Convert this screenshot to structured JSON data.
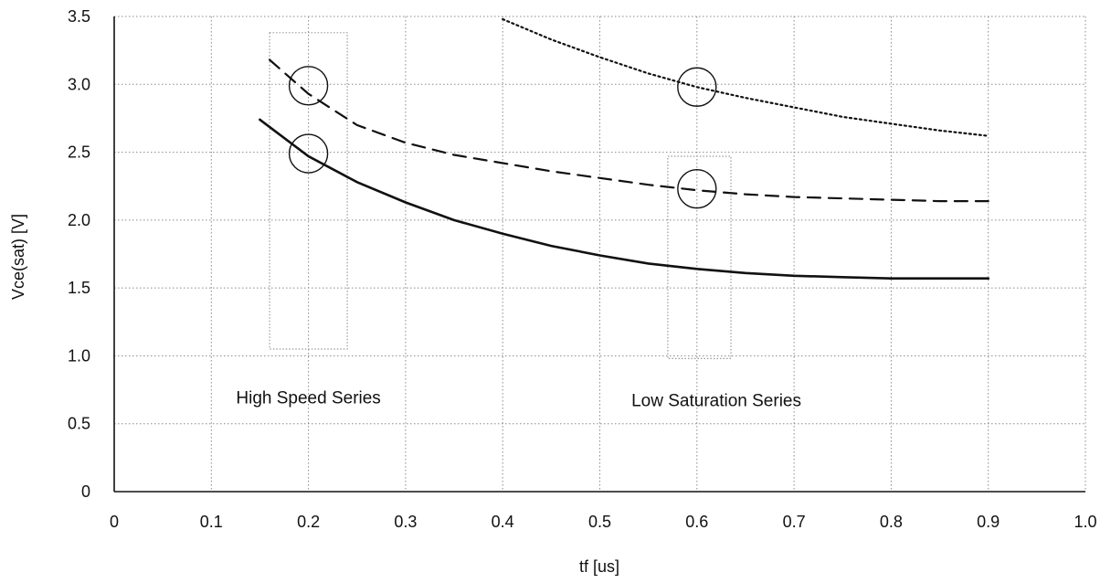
{
  "chart_data": {
    "type": "line",
    "title": "",
    "xlabel": "tf [us]",
    "ylabel": "Vce(sat) [V]",
    "xlim": [
      0,
      1.0
    ],
    "ylim": [
      0,
      3.5
    ],
    "grid": true,
    "legend": "none",
    "x_ticks": [
      {
        "value": 0,
        "label": "0"
      },
      {
        "value": 0.1,
        "label": "0.1"
      },
      {
        "value": 0.2,
        "label": "0.2"
      },
      {
        "value": 0.3,
        "label": "0.3"
      },
      {
        "value": 0.4,
        "label": "0.4"
      },
      {
        "value": 0.5,
        "label": "0.5"
      },
      {
        "value": 0.6,
        "label": "0.6"
      },
      {
        "value": 0.7,
        "label": "0.7"
      },
      {
        "value": 0.8,
        "label": "0.8"
      },
      {
        "value": 0.9,
        "label": "0.9"
      },
      {
        "value": 1.0,
        "label": "1.0"
      }
    ],
    "y_ticks": [
      {
        "value": 0,
        "label": "0"
      },
      {
        "value": 0.5,
        "label": "0.5"
      },
      {
        "value": 1.0,
        "label": "1.0"
      },
      {
        "value": 1.5,
        "label": "1.5"
      },
      {
        "value": 2.0,
        "label": "2.0"
      },
      {
        "value": 2.5,
        "label": "2.5"
      },
      {
        "value": 3.0,
        "label": "3.0"
      },
      {
        "value": 3.5,
        "label": "3.5"
      }
    ],
    "series": [
      {
        "style": "solid",
        "x": [
          0.15,
          0.2,
          0.25,
          0.3,
          0.35,
          0.4,
          0.45,
          0.5,
          0.55,
          0.6,
          0.65,
          0.7,
          0.75,
          0.8,
          0.85,
          0.9
        ],
        "y": [
          2.74,
          2.47,
          2.28,
          2.13,
          2.0,
          1.9,
          1.81,
          1.74,
          1.68,
          1.64,
          1.61,
          1.59,
          1.58,
          1.57,
          1.57,
          1.57
        ]
      },
      {
        "style": "dashed",
        "x": [
          0.16,
          0.2,
          0.25,
          0.3,
          0.35,
          0.4,
          0.45,
          0.5,
          0.55,
          0.6,
          0.65,
          0.7,
          0.75,
          0.8,
          0.85,
          0.9
        ],
        "y": [
          3.18,
          2.93,
          2.7,
          2.57,
          2.48,
          2.42,
          2.36,
          2.31,
          2.26,
          2.22,
          2.19,
          2.17,
          2.16,
          2.15,
          2.14,
          2.14
        ]
      },
      {
        "style": "dotted",
        "x": [
          0.4,
          0.45,
          0.5,
          0.55,
          0.6,
          0.65,
          0.7,
          0.75,
          0.8,
          0.85,
          0.9
        ],
        "y": [
          3.48,
          3.33,
          3.2,
          3.08,
          2.98,
          2.9,
          2.83,
          2.76,
          2.71,
          2.66,
          2.62
        ]
      }
    ],
    "highlight_circles": [
      {
        "x": 0.2,
        "y": 2.99
      },
      {
        "x": 0.2,
        "y": 2.49
      },
      {
        "x": 0.6,
        "y": 2.98
      },
      {
        "x": 0.6,
        "y": 2.23
      }
    ],
    "highlight_boxes": [
      {
        "x0": 0.16,
        "x1": 0.24,
        "y0": 1.05,
        "y1": 3.38
      },
      {
        "x0": 0.57,
        "x1": 0.635,
        "y0": 0.98,
        "y1": 2.47
      }
    ],
    "annotations": [
      {
        "text": "High Speed Series",
        "x": 0.2,
        "y": 0.65
      },
      {
        "text": "Low Saturation Series",
        "x": 0.62,
        "y": 0.63
      }
    ]
  },
  "colors": {
    "line": "#111111",
    "grid": "#8a8a8a",
    "box": "#9a9a9a"
  }
}
